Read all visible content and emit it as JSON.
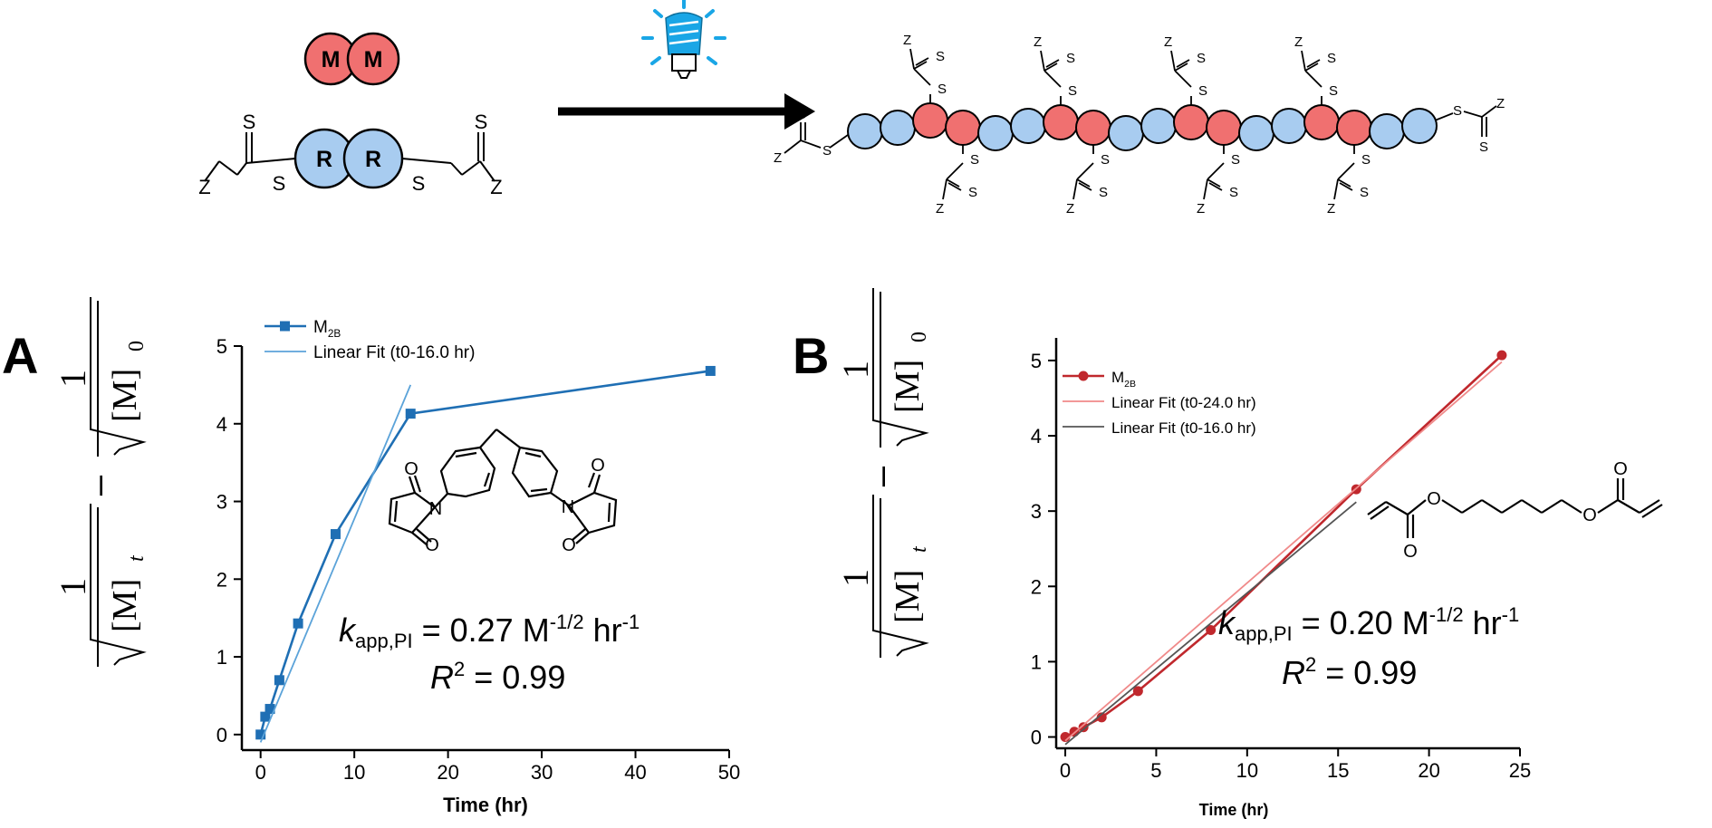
{
  "scheme": {
    "monomer_label": "M",
    "raft_label": "R",
    "chain_end_label": "Z",
    "sulfur_label": "S",
    "colors": {
      "monomer": "#f07070",
      "raft": "#a8ccf0",
      "arrow": "#000000",
      "light": "#1aa6e6"
    }
  },
  "panel_a": {
    "letter": "A",
    "kapp_prefix": "k",
    "kapp_sub": "app,PI",
    "kapp_value": " = 0.27 M",
    "kapp_exp": "-1/2",
    "kapp_unit": " hr",
    "kapp_unit_exp": "-1",
    "r2_prefix": "R",
    "r2_exp": "2",
    "r2_value": " = 0.99"
  },
  "panel_b": {
    "letter": "B",
    "kapp_prefix": "k",
    "kapp_sub": "app,PI",
    "kapp_value": " = 0.20 M",
    "kapp_exp": "-1/2",
    "kapp_unit": " hr",
    "kapp_unit_exp": "-1",
    "r2_prefix": "R",
    "r2_exp": "2",
    "r2_value": " = 0.99"
  },
  "ylabel": {
    "one": "1",
    "m_t": "[M]",
    "t_sub": "t",
    "minus": "–",
    "m_0": "[M]",
    "zero_sub": "0"
  },
  "chart_data": [
    {
      "type": "line",
      "xlabel": "Time (hr)",
      "xlim": [
        -2,
        50
      ],
      "ylim": [
        -0.2,
        5
      ],
      "xticks": [
        "0",
        "10",
        "20",
        "30",
        "40",
        "50"
      ],
      "yticks": [
        "0",
        "1",
        "2",
        "3",
        "4",
        "5"
      ],
      "legend_position": "top-left",
      "series": [
        {
          "name": "M2B",
          "name_base": "M",
          "name_sub": "2B",
          "color": "#1f6fb4",
          "marker": "square",
          "x": [
            0,
            0.5,
            1,
            2,
            4,
            8,
            16,
            48
          ],
          "y": [
            0,
            0.23,
            0.33,
            0.7,
            1.43,
            2.58,
            4.13,
            4.68
          ]
        },
        {
          "name": "Linear Fit (t0-16.0 hr)",
          "color": "#5ba3d9",
          "x": [
            0,
            16
          ],
          "y": [
            -0.1,
            4.5
          ]
        }
      ]
    },
    {
      "type": "line",
      "xlabel": "Time (hr)",
      "xlim": [
        -0.5,
        25
      ],
      "ylim": [
        -0.15,
        5.3
      ],
      "xticks": [
        "0",
        "5",
        "10",
        "15",
        "20",
        "25"
      ],
      "yticks": [
        "0",
        "1",
        "2",
        "3",
        "4",
        "5"
      ],
      "legend_position": "top-left",
      "series": [
        {
          "name": "M2B",
          "name_base": "M",
          "name_sub": "2B",
          "color": "#c0282d",
          "marker": "circle",
          "x": [
            0,
            0.5,
            1,
            2,
            4,
            8,
            16,
            24
          ],
          "y": [
            0,
            0.07,
            0.13,
            0.26,
            0.61,
            1.42,
            3.29,
            5.07
          ]
        },
        {
          "name": "Linear Fit (t0-24.0 hr)",
          "color": "#f08a8a",
          "x": [
            0,
            24
          ],
          "y": [
            -0.05,
            4.98
          ]
        },
        {
          "name": "Linear Fit (t0-16.0 hr)",
          "color": "#555555",
          "x": [
            0,
            16
          ],
          "y": [
            -0.1,
            3.12
          ]
        }
      ]
    }
  ]
}
